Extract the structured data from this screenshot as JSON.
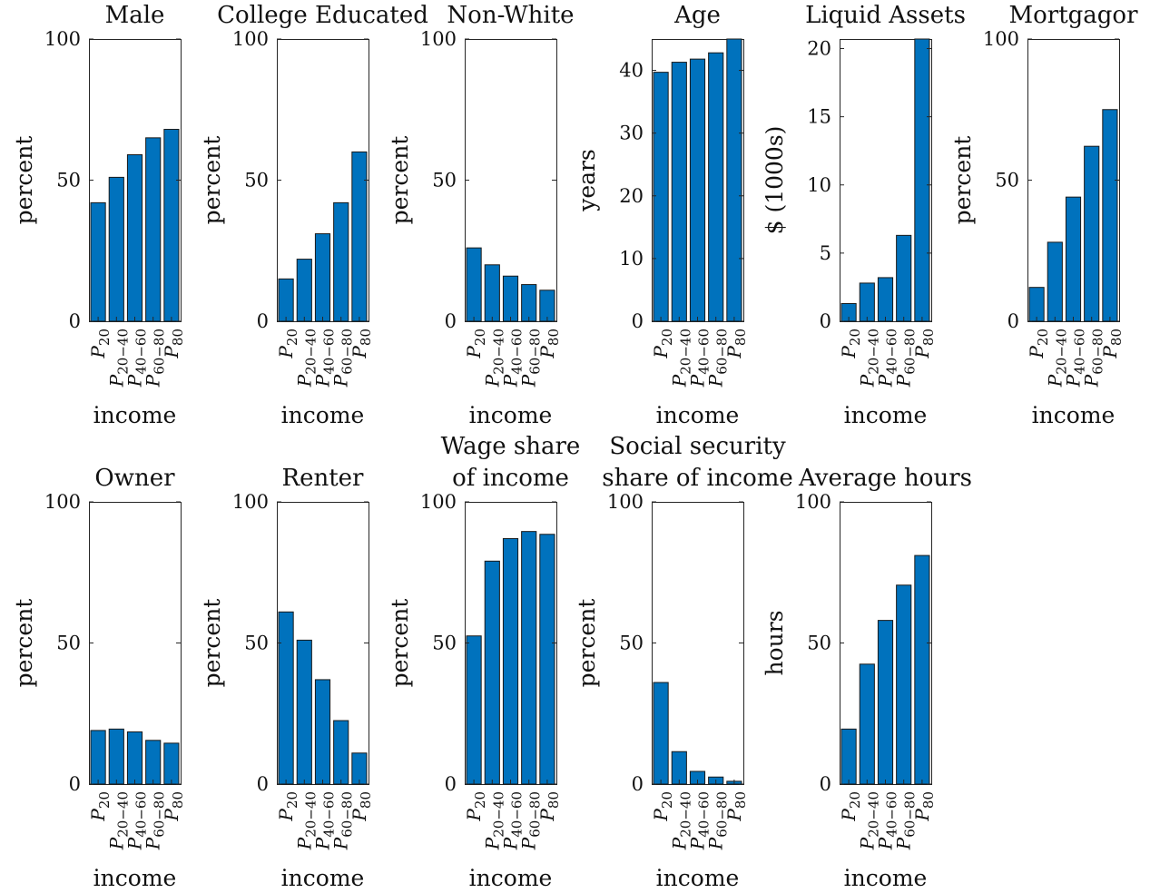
{
  "figure": {
    "bar_color": "#0072BD",
    "axis_color": "#262626"
  },
  "chart_data": [
    {
      "type": "bar",
      "title": [
        "Male"
      ],
      "ylabel": "percent",
      "xlabel": "income",
      "categories": [
        {
          "base": "P",
          "sub": "20"
        },
        {
          "base": "P",
          "sub": "20−40"
        },
        {
          "base": "P",
          "sub": "40−60"
        },
        {
          "base": "P",
          "sub": "60−80"
        },
        {
          "base": "P",
          "sub": "80"
        }
      ],
      "values": [
        42,
        51,
        59,
        65,
        68
      ],
      "ylim": [
        0,
        100
      ],
      "yticks": [
        0,
        50,
        100
      ]
    },
    {
      "type": "bar",
      "title": [
        "College Educated"
      ],
      "ylabel": "percent",
      "xlabel": "income",
      "categories": [
        {
          "base": "P",
          "sub": "20"
        },
        {
          "base": "P",
          "sub": "20−40"
        },
        {
          "base": "P",
          "sub": "40−60"
        },
        {
          "base": "P",
          "sub": "60−80"
        },
        {
          "base": "P",
          "sub": "80"
        }
      ],
      "values": [
        15,
        22,
        31,
        42,
        60
      ],
      "ylim": [
        0,
        100
      ],
      "yticks": [
        0,
        50,
        100
      ]
    },
    {
      "type": "bar",
      "title": [
        "Non-White"
      ],
      "ylabel": "percent",
      "xlabel": "income",
      "categories": [
        {
          "base": "P",
          "sub": "20"
        },
        {
          "base": "P",
          "sub": "20−40"
        },
        {
          "base": "P",
          "sub": "40−60"
        },
        {
          "base": "P",
          "sub": "60−80"
        },
        {
          "base": "P",
          "sub": "80"
        }
      ],
      "values": [
        26,
        20,
        16,
        13,
        11
      ],
      "ylim": [
        0,
        100
      ],
      "yticks": [
        0,
        50,
        100
      ]
    },
    {
      "type": "bar",
      "title": [
        "Age"
      ],
      "ylabel": "years",
      "xlabel": "income",
      "categories": [
        {
          "base": "P",
          "sub": "20"
        },
        {
          "base": "P",
          "sub": "20−40"
        },
        {
          "base": "P",
          "sub": "40−60"
        },
        {
          "base": "P",
          "sub": "60−80"
        },
        {
          "base": "P",
          "sub": "80"
        }
      ],
      "values": [
        39.7,
        41.3,
        41.8,
        42.8,
        45
      ],
      "ylim": [
        0,
        45
      ],
      "yticks": [
        0,
        10,
        20,
        30,
        40
      ]
    },
    {
      "type": "bar",
      "title": [
        "Liquid Assets"
      ],
      "ylabel": "$ (1000s)",
      "xlabel": "income",
      "categories": [
        {
          "base": "P",
          "sub": "20"
        },
        {
          "base": "P",
          "sub": "20−40"
        },
        {
          "base": "P",
          "sub": "40−60"
        },
        {
          "base": "P",
          "sub": "60−80"
        },
        {
          "base": "P",
          "sub": "80"
        }
      ],
      "values": [
        1.3,
        2.8,
        3.2,
        6.3,
        20.7
      ],
      "ylim": [
        0,
        20.7
      ],
      "yticks": [
        0,
        5,
        10,
        15,
        20
      ]
    },
    {
      "type": "bar",
      "title": [
        "Mortgagor"
      ],
      "ylabel": "percent",
      "xlabel": "income",
      "categories": [
        {
          "base": "P",
          "sub": "20"
        },
        {
          "base": "P",
          "sub": "20−40"
        },
        {
          "base": "P",
          "sub": "40−60"
        },
        {
          "base": "P",
          "sub": "60−80"
        },
        {
          "base": "P",
          "sub": "80"
        }
      ],
      "values": [
        12,
        28,
        44,
        62,
        75
      ],
      "ylim": [
        0,
        100
      ],
      "yticks": [
        0,
        50,
        100
      ]
    },
    {
      "type": "bar",
      "title": [
        "Owner"
      ],
      "ylabel": "percent",
      "xlabel": "income",
      "categories": [
        {
          "base": "P",
          "sub": "20"
        },
        {
          "base": "P",
          "sub": "20−40"
        },
        {
          "base": "P",
          "sub": "40−60"
        },
        {
          "base": "P",
          "sub": "60−80"
        },
        {
          "base": "P",
          "sub": "80"
        }
      ],
      "values": [
        19,
        19.5,
        18.5,
        15.5,
        14.5
      ],
      "ylim": [
        0,
        100
      ],
      "yticks": [
        0,
        50,
        100
      ]
    },
    {
      "type": "bar",
      "title": [
        "Renter"
      ],
      "ylabel": "percent",
      "xlabel": "income",
      "categories": [
        {
          "base": "P",
          "sub": "20"
        },
        {
          "base": "P",
          "sub": "20−40"
        },
        {
          "base": "P",
          "sub": "40−60"
        },
        {
          "base": "P",
          "sub": "60−80"
        },
        {
          "base": "P",
          "sub": "80"
        }
      ],
      "values": [
        61,
        51,
        37,
        22.5,
        11
      ],
      "ylim": [
        0,
        100
      ],
      "yticks": [
        0,
        50,
        100
      ]
    },
    {
      "type": "bar",
      "title": [
        "Wage share",
        "of income"
      ],
      "ylabel": "percent",
      "xlabel": "income",
      "categories": [
        {
          "base": "P",
          "sub": "20"
        },
        {
          "base": "P",
          "sub": "20−40"
        },
        {
          "base": "P",
          "sub": "40−60"
        },
        {
          "base": "P",
          "sub": "60−80"
        },
        {
          "base": "P",
          "sub": "80"
        }
      ],
      "values": [
        52.5,
        79,
        87,
        89.5,
        88.5
      ],
      "ylim": [
        0,
        100
      ],
      "yticks": [
        0,
        50,
        100
      ]
    },
    {
      "type": "bar",
      "title": [
        "Social security",
        "share of income"
      ],
      "ylabel": "percent",
      "xlabel": "income",
      "categories": [
        {
          "base": "P",
          "sub": "20"
        },
        {
          "base": "P",
          "sub": "20−40"
        },
        {
          "base": "P",
          "sub": "40−60"
        },
        {
          "base": "P",
          "sub": "60−80"
        },
        {
          "base": "P",
          "sub": "80"
        }
      ],
      "values": [
        36,
        11.5,
        4.5,
        2.5,
        1
      ],
      "ylim": [
        0,
        100
      ],
      "yticks": [
        0,
        50,
        100
      ]
    },
    {
      "type": "bar",
      "title": [
        "Average hours"
      ],
      "ylabel": "hours",
      "xlabel": "income",
      "categories": [
        {
          "base": "P",
          "sub": "20"
        },
        {
          "base": "P",
          "sub": "20−40"
        },
        {
          "base": "P",
          "sub": "40−60"
        },
        {
          "base": "P",
          "sub": "60−80"
        },
        {
          "base": "P",
          "sub": "80"
        }
      ],
      "values": [
        19.5,
        42.5,
        58,
        70.5,
        81
      ],
      "ylim": [
        0,
        100
      ],
      "yticks": [
        0,
        50,
        100
      ]
    }
  ]
}
